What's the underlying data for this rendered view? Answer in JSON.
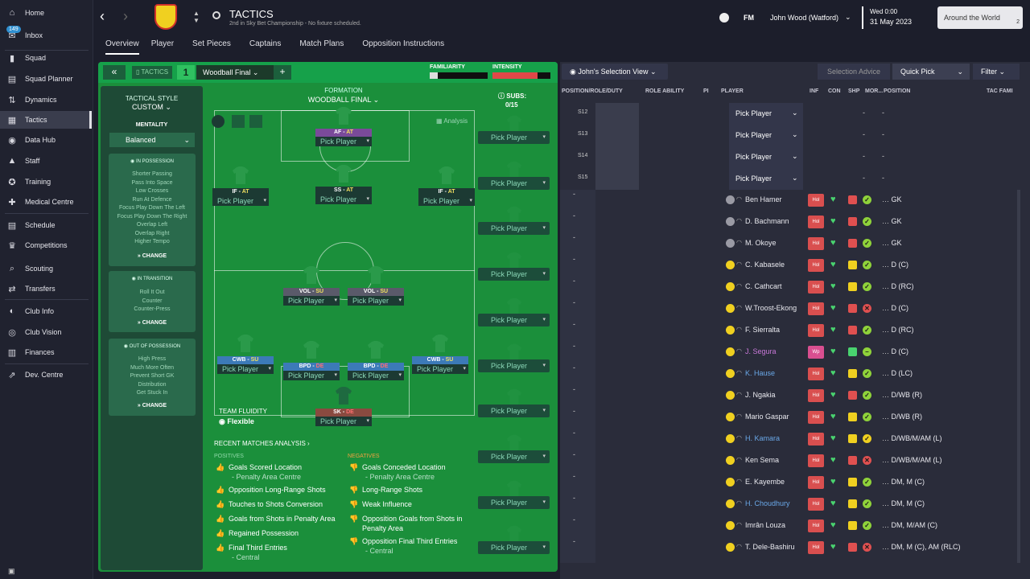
{
  "sidebar": {
    "badge": "149",
    "items": [
      "Home",
      "Inbox",
      "Squad",
      "Squad Planner",
      "Dynamics",
      "Tactics",
      "Data Hub",
      "Staff",
      "Training",
      "Medical Centre",
      "Schedule",
      "Competitions",
      "Scouting",
      "Transfers",
      "Club Info",
      "Club Vision",
      "Finances",
      "Dev. Centre"
    ]
  },
  "header": {
    "title": "TACTICS",
    "subtitle": "2nd in Sky Bet Championship - No fixture scheduled.",
    "fm": "FM",
    "manager": "John Wood (Watford)",
    "day": "Wed 0:00",
    "date": "31 May 2023",
    "continue": "Around the World",
    "continue_count": "2"
  },
  "tabs": [
    "Overview",
    "Player",
    "Set Pieces",
    "Captains",
    "Match Plans",
    "Opposition Instructions"
  ],
  "tactic": {
    "label": "TACTICS",
    "slot": "1",
    "name": "Woodball Final",
    "familiarity": "FAMILIARITY",
    "intensity": "INTENSITY",
    "formation_label": "FORMATION",
    "formation": "WOODBALL FINAL",
    "subs_label": "SUBS:",
    "subs": "0/15",
    "analysis": "Analysis",
    "style_label": "TACTICAL STYLE",
    "style": "CUSTOM",
    "mentality_label": "MENTALITY",
    "mentality": "Balanced",
    "change": "CHANGE",
    "fluidity_label": "TEAM FLUIDITY",
    "fluidity": "Flexible",
    "recent": "RECENT MATCHES ANALYSIS"
  },
  "in_possession": {
    "title": "IN POSSESSION",
    "items": [
      "Shorter Passing",
      "Pass Into Space",
      "Low Crosses",
      "Run At Defence",
      "Focus Play Down The Left",
      "Focus Play Down The Right",
      "Overlap Left",
      "Overlap Right",
      "Higher Tempo"
    ]
  },
  "in_transition": {
    "title": "IN TRANSITION",
    "items": [
      "Roll It Out",
      "Counter",
      "Counter-Press"
    ]
  },
  "out_possession": {
    "title": "OUT OF POSSESSION",
    "items": [
      "High Press",
      "Much More Often",
      "Prevent Short GK",
      "Distribution",
      "Get Stuck In"
    ]
  },
  "roles": [
    {
      "role": "AF",
      "duty": "AT",
      "label": "Pick Player"
    },
    {
      "role": "IF",
      "duty": "AT",
      "label": "Pick Player"
    },
    {
      "role": "SS",
      "duty": "AT",
      "label": "Pick Player"
    },
    {
      "role": "IF",
      "duty": "AT",
      "label": "Pick Player"
    },
    {
      "role": "VOL",
      "duty": "SU",
      "label": "Pick Player"
    },
    {
      "role": "VOL",
      "duty": "SU",
      "label": "Pick Player"
    },
    {
      "role": "CWB",
      "duty": "SU",
      "label": "Pick Player"
    },
    {
      "role": "BPD",
      "duty": "DE",
      "label": "Pick Player"
    },
    {
      "role": "BPD",
      "duty": "DE",
      "label": "Pick Player"
    },
    {
      "role": "CWB",
      "duty": "SU",
      "label": "Pick Player"
    },
    {
      "role": "SK",
      "duty": "DE",
      "label": "Pick Player"
    }
  ],
  "sub_slot_label": "Pick Player",
  "analysis": {
    "positives_label": "POSITIVES",
    "negatives_label": "NEGATIVES",
    "positives": [
      {
        "t": "Goals Scored Location",
        "s": "- Penalty Area Centre"
      },
      {
        "t": "Opposition Long-Range Shots",
        "s": ""
      },
      {
        "t": "Touches to Shots Conversion",
        "s": ""
      },
      {
        "t": "Goals from Shots in Penalty Area",
        "s": ""
      },
      {
        "t": "Regained Possession",
        "s": ""
      },
      {
        "t": "Final Third Entries",
        "s": "- Central"
      }
    ],
    "negatives": [
      {
        "t": "Goals Conceded Location",
        "s": "- Penalty Area Centre"
      },
      {
        "t": "Long-Range Shots",
        "s": ""
      },
      {
        "t": "Weak Influence",
        "s": ""
      },
      {
        "t": "Opposition Goals from Shots in Penalty Area",
        "s": ""
      },
      {
        "t": "Opposition Final Third Entries",
        "s": "- Central"
      }
    ]
  },
  "list": {
    "view": "John's Selection View",
    "selection_advice": "Selection Advice",
    "quick_pick": "Quick Pick",
    "filter": "Filter",
    "columns": [
      "POSITION/ROLE/DUTY",
      "ROLE ABILITY",
      "PI",
      "PLAYER",
      "INF",
      "CON",
      "SHP",
      "MOR...",
      "POSITION",
      "TAC FAMI"
    ],
    "sub_rows": [
      "S12",
      "S13",
      "S14",
      "S15"
    ],
    "players": [
      {
        "name": "Ben Hamer",
        "inf": "Hol",
        "shp": "#e05050",
        "mor": "#8fd23a",
        "m": "✓",
        "pos": "GK",
        "c": "#e8e8ee",
        "dot": "g"
      },
      {
        "name": "D. Bachmann",
        "inf": "Hol",
        "shp": "#e05050",
        "mor": "#8fd23a",
        "m": "✓",
        "pos": "GK",
        "c": "#e8e8ee",
        "dot": "g"
      },
      {
        "name": "M. Okoye",
        "inf": "Hol",
        "shp": "#e05050",
        "mor": "#8fd23a",
        "m": "✓",
        "pos": "GK",
        "c": "#e8e8ee",
        "dot": "g"
      },
      {
        "name": "C. Kabasele",
        "inf": "Hol",
        "shp": "#f0d020",
        "mor": "#8fd23a",
        "m": "✓",
        "pos": "D (C)",
        "c": "#e8e8ee",
        "dot": "y"
      },
      {
        "name": "C. Cathcart",
        "inf": "Hol",
        "shp": "#f0d020",
        "mor": "#8fd23a",
        "m": "✓",
        "pos": "D (RC)",
        "c": "#e8e8ee",
        "dot": "y"
      },
      {
        "name": "W.Troost-Ekong",
        "inf": "Hol",
        "shp": "#e05050",
        "mor": "#e05050",
        "m": "✕",
        "pos": "D (C)",
        "c": "#e8e8ee",
        "dot": "y"
      },
      {
        "name": "F. Sierralta",
        "inf": "Hol",
        "shp": "#e05050",
        "mor": "#8fd23a",
        "m": "✓",
        "pos": "D (RC)",
        "c": "#e8e8ee",
        "dot": "y"
      },
      {
        "name": "J. Segura",
        "inf": "Wp",
        "shp": "#49d36f",
        "mor": "#8fd23a",
        "m": "–",
        "pos": "D (C)",
        "c": "#c878d8",
        "dot": "y"
      },
      {
        "name": "K. Hause",
        "inf": "Hol",
        "shp": "#f0d020",
        "mor": "#8fd23a",
        "m": "✓",
        "pos": "D (LC)",
        "c": "#6aa8e8",
        "dot": "y"
      },
      {
        "name": "J. Ngakia",
        "inf": "Hol",
        "shp": "#e05050",
        "mor": "#8fd23a",
        "m": "✓",
        "pos": "D/WB (R)",
        "c": "#e8e8ee",
        "dot": "y"
      },
      {
        "name": "Mario Gaspar",
        "inf": "Hol",
        "shp": "#f0d020",
        "mor": "#8fd23a",
        "m": "✓",
        "pos": "D/WB (R)",
        "c": "#e8e8ee",
        "dot": "y"
      },
      {
        "name": "H. Kamara",
        "inf": "Hol",
        "shp": "#f0d020",
        "mor": "#f0d020",
        "m": "✓",
        "pos": "D/WB/M/AM (L)",
        "c": "#6aa8e8",
        "dot": "y"
      },
      {
        "name": "Ken Sema",
        "inf": "Hol",
        "shp": "#e05050",
        "mor": "#e05050",
        "m": "✕",
        "pos": "D/WB/M/AM (L)",
        "c": "#e8e8ee",
        "dot": "y"
      },
      {
        "name": "E. Kayembe",
        "inf": "Hol",
        "shp": "#f0d020",
        "mor": "#8fd23a",
        "m": "✓",
        "pos": "DM, M (C)",
        "c": "#e8e8ee",
        "dot": "y"
      },
      {
        "name": "H. Choudhury",
        "inf": "Hol",
        "shp": "#f0d020",
        "mor": "#8fd23a",
        "m": "✓",
        "pos": "DM, M (C)",
        "c": "#6aa8e8",
        "dot": "y"
      },
      {
        "name": "Imrân Louza",
        "inf": "Hol",
        "shp": "#f0d020",
        "mor": "#8fd23a",
        "m": "✓",
        "pos": "DM, M/AM (C)",
        "c": "#e8e8ee",
        "dot": "y"
      },
      {
        "name": "T. Dele-Bashiru",
        "inf": "Hol",
        "shp": "#e05050",
        "mor": "#e05050",
        "m": "✕",
        "pos": "DM, M (C), AM (RLC)",
        "c": "#e8e8ee",
        "dot": "y"
      }
    ]
  },
  "list_pick_player": "Pick Player"
}
